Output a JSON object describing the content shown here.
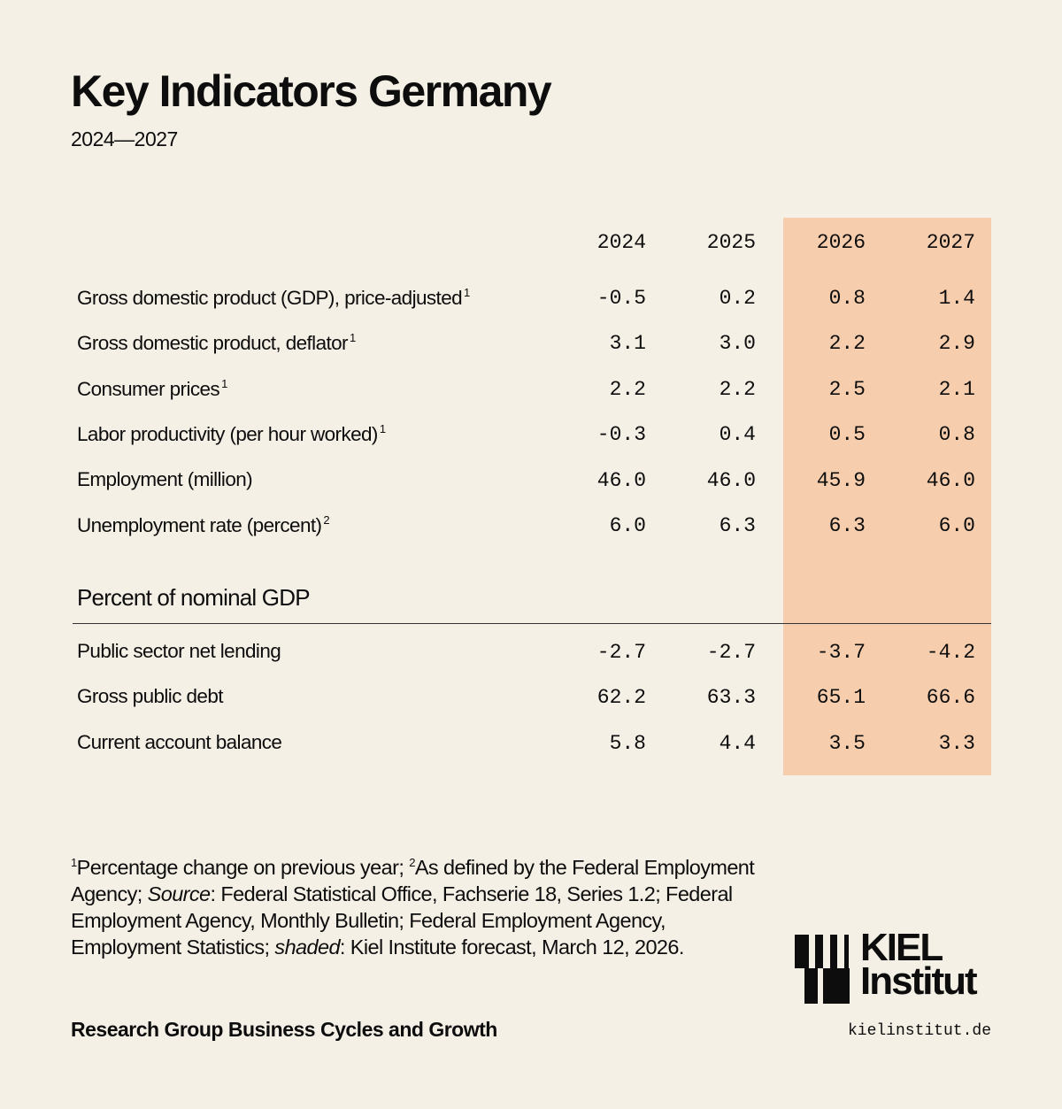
{
  "title": "Key Indicators Germany",
  "subtitle": "2024—2027",
  "columns": [
    "2024",
    "2025",
    "2026",
    "2027"
  ],
  "shaded_color": "#f7cead",
  "rows": [
    {
      "label": "Gross domestic product (GDP), price-adjusted",
      "note": "1",
      "values": [
        "-0.5",
        "0.2",
        "0.8",
        "1.4"
      ]
    },
    {
      "label": "Gross domestic product, deflator",
      "note": "1",
      "values": [
        "3.1",
        "3.0",
        "2.2",
        "2.9"
      ]
    },
    {
      "label": "Consumer prices",
      "note": "1",
      "values": [
        "2.2",
        "2.2",
        "2.5",
        "2.1"
      ]
    },
    {
      "label": "Labor productivity (per hour worked)",
      "note": "1",
      "values": [
        "-0.3",
        "0.4",
        "0.5",
        "0.8"
      ]
    },
    {
      "label": "Employment (million)",
      "note": "",
      "values": [
        "46.0",
        "46.0",
        "45.9",
        "46.0"
      ]
    },
    {
      "label": "Unemployment rate (percent)",
      "note": "2",
      "values": [
        "6.0",
        "6.3",
        "6.3",
        "6.0"
      ]
    }
  ],
  "section_title": "Percent of nominal GDP",
  "section_rows": [
    {
      "label": "Public sector net lending",
      "values": [
        "-2.7",
        "-2.7",
        "-3.7",
        "-4.2"
      ]
    },
    {
      "label": "Gross public debt",
      "values": [
        "62.2",
        "63.3",
        "65.1",
        "66.6"
      ]
    },
    {
      "label": "Current account balance",
      "values": [
        "5.8",
        "4.4",
        "3.5",
        "3.3"
      ]
    }
  ],
  "footnote": {
    "n1": "1",
    "t1": "Percentage change on previous year; ",
    "n2": "2",
    "t2": "As defined by the Federal Employment Agency; ",
    "source_label": "Source",
    "t3": ": Federal Statistical Office, Fachserie 18, Series 1.2; Federal Employment Agency, Monthly Bulletin; Federal Employment Agency, Employment Statistics; ",
    "shaded_label": "shaded",
    "t4": ": Kiel Institute forecast, March 12, 2026."
  },
  "research_group": "Research Group Business Cycles and Growth",
  "logo": {
    "line1": "KIEL",
    "line2": "Institut"
  },
  "url": "kielinstitut.de"
}
